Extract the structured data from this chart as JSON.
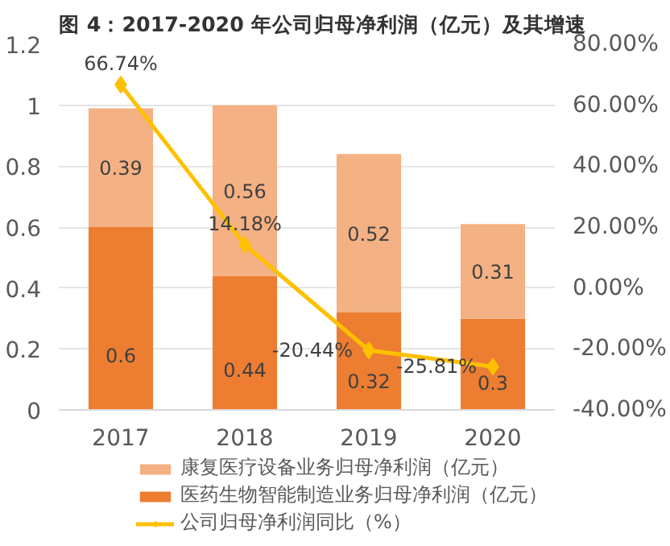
{
  "chart_data": {
    "type": "bar",
    "title": "图 4：2017-2020 年公司归母净利润（亿元）及其增速",
    "categories": [
      "2017",
      "2018",
      "2019",
      "2020"
    ],
    "stacked": true,
    "data_labels": true,
    "grid": "y",
    "legend": "bottom",
    "ylim": [
      0,
      1.2
    ],
    "yticks": [
      0,
      0.2,
      0.4,
      0.6,
      0.8,
      1,
      1.2
    ],
    "y2lim": [
      -40,
      80
    ],
    "y2ticks": [
      {
        "value": -40,
        "label": "-40.00%"
      },
      {
        "value": -20,
        "label": "-20.00%"
      },
      {
        "value": 0,
        "label": "0.00%"
      },
      {
        "value": 20,
        "label": "20.00%"
      },
      {
        "value": 40,
        "label": "40.00%"
      },
      {
        "value": 60,
        "label": "60.00%"
      },
      {
        "value": 80,
        "label": "80.00%"
      }
    ],
    "series": [
      {
        "name": "医药生物智能制造业务归母净利润（亿元）",
        "color": "#ed7d31",
        "values": [
          0.6,
          0.44,
          0.32,
          0.3
        ]
      },
      {
        "name": "康复医疗设备业务归母净利润（亿元）",
        "color": "#f4b183",
        "values": [
          0.39,
          0.56,
          0.52,
          0.31
        ]
      },
      {
        "name": "公司归母净利润同比（%）",
        "type": "line",
        "axis": "y2",
        "color": "#ffc000",
        "marker": "diamond",
        "line_style": "solid",
        "values": [
          66.74,
          14.18,
          -20.44,
          -25.81
        ],
        "value_labels": [
          "66.74%",
          "14.18%",
          "-20.44%",
          "-25.81%"
        ]
      }
    ]
  }
}
